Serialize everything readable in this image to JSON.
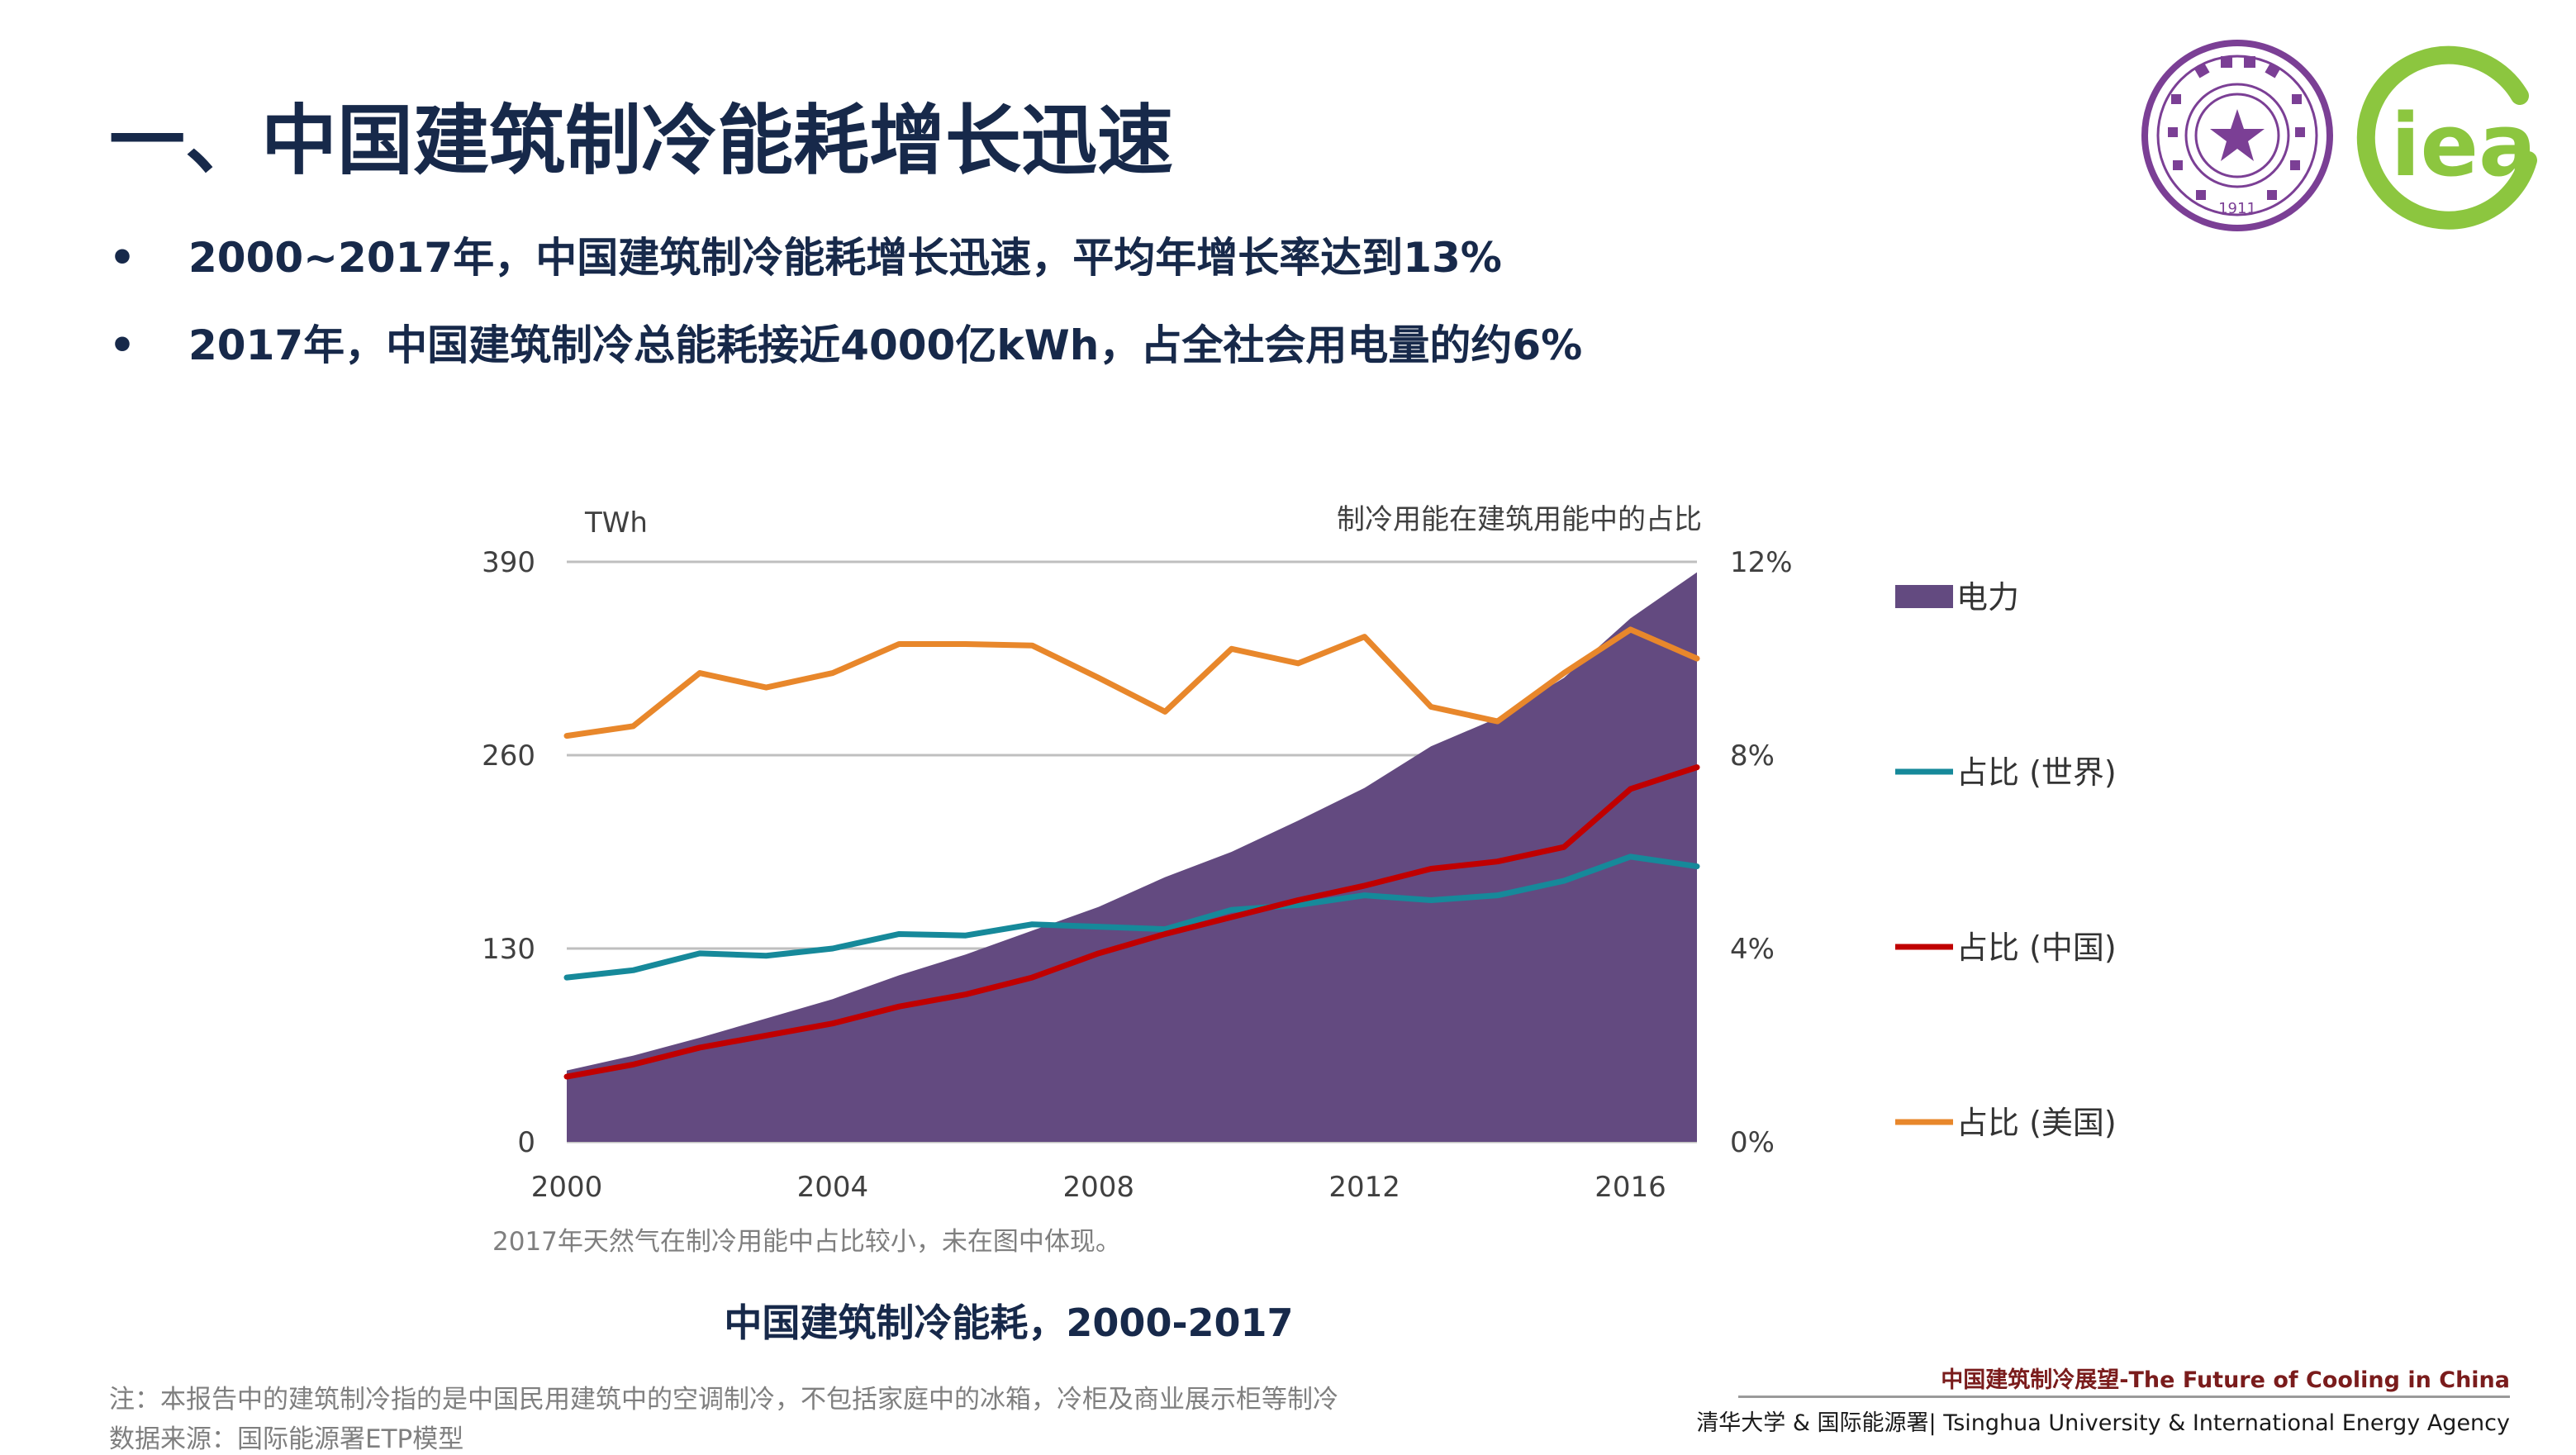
{
  "slide": {
    "title": "一、中国建筑制冷能耗增长迅速",
    "bullets": [
      "2000~2017年，中国建筑制冷能耗增长迅速，平均年增长率达到13%",
      "2017年，中国建筑制冷总能耗接近4000亿kWh，占全社会用电量的约6%"
    ],
    "bullet_marker": "•",
    "chart_note": "2017年天然气在制冷用能中占比较小，未在图中体现。",
    "chart_caption": "中国建筑制冷能耗，2000-2017",
    "footnotes": [
      "注：本报告中的建筑制冷指的是中国民用建筑中的空调制冷，不包括家庭中的冰箱，冷柜及商业展示柜等制冷",
      "数据来源：国际能源署ETP模型"
    ],
    "footer_title_cn": "中国建筑制冷展望",
    "footer_title_en": "-The Future of Cooling in China",
    "footer_org": "清华大学 & 国际能源署| Tsinghua University & International Energy Agency",
    "logos": {
      "tsinghua": {
        "icon": "tsinghua-seal",
        "color": "#7b3f95",
        "year": "1911"
      },
      "iea": {
        "text": "iea",
        "color": "#8cc63f"
      }
    }
  },
  "chart_data": {
    "type": "area",
    "x": [
      2000,
      2001,
      2002,
      2003,
      2004,
      2005,
      2006,
      2007,
      2008,
      2009,
      2010,
      2011,
      2012,
      2013,
      2014,
      2015,
      2016,
      2017
    ],
    "left_axis": {
      "label": "TWh",
      "ticks": [
        "0",
        "130",
        "260",
        "390"
      ],
      "ylim": [
        0,
        390
      ]
    },
    "right_axis": {
      "label": "制冷用能在建筑用能中的占比",
      "ticks": [
        "0%",
        "4%",
        "8%",
        "12%"
      ],
      "ylim": [
        0,
        12
      ]
    },
    "x_ticks": [
      "2000",
      "2004",
      "2008",
      "2012",
      "2016"
    ],
    "series": [
      {
        "name": "电力",
        "kind": "area",
        "axis": "left",
        "color": "#634a80",
        "values": [
          48,
          58,
          70,
          83,
          96,
          112,
          126,
          142,
          158,
          178,
          195,
          216,
          238,
          266,
          285,
          312,
          352,
          383
        ]
      },
      {
        "name": "占比 (世界)",
        "kind": "line",
        "axis": "right",
        "color": "#16899a",
        "values": [
          3.4,
          3.55,
          3.9,
          3.85,
          4.0,
          4.3,
          4.27,
          4.5,
          4.45,
          4.4,
          4.8,
          4.9,
          5.1,
          5.0,
          5.1,
          5.4,
          5.9,
          5.7
        ]
      },
      {
        "name": "占比 (中国)",
        "kind": "line",
        "axis": "right",
        "color": "#c00000",
        "values": [
          1.35,
          1.6,
          1.95,
          2.2,
          2.45,
          2.8,
          3.05,
          3.4,
          3.9,
          4.3,
          4.65,
          5.0,
          5.3,
          5.65,
          5.8,
          6.1,
          7.3,
          7.75
        ]
      },
      {
        "name": "占比 (美国)",
        "kind": "line",
        "axis": "right",
        "color": "#e8872b",
        "values": [
          8.4,
          8.6,
          9.7,
          9.4,
          9.7,
          10.3,
          10.3,
          10.27,
          9.6,
          8.9,
          10.2,
          9.9,
          10.45,
          9.0,
          8.7,
          9.7,
          10.6,
          10.0
        ]
      }
    ],
    "grid": true,
    "legend_position": "right"
  }
}
